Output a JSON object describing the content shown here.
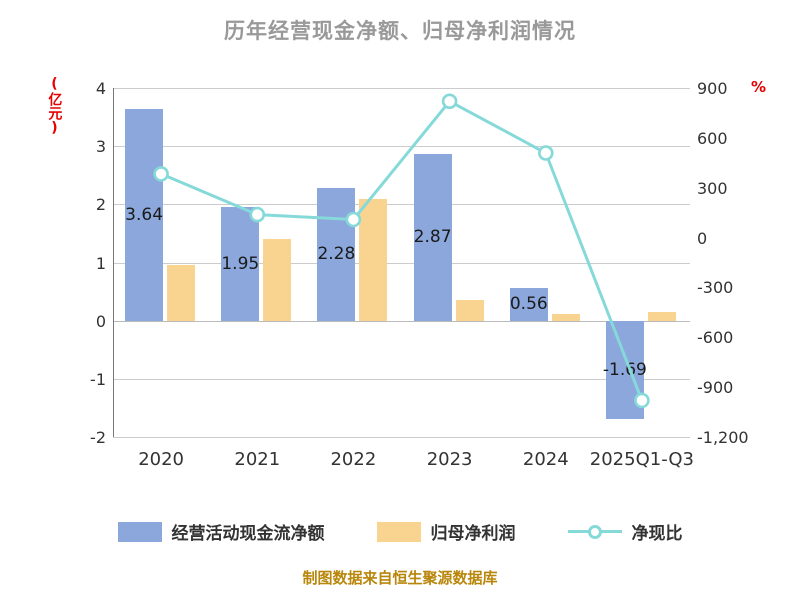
{
  "title": "历年经营现金净额、归母净利润情况",
  "footer": "制图数据来自恒生聚源数据库",
  "colors": {
    "title_gray": "#999999",
    "axis_unit_red": "#e60000",
    "tick_label": "#333333",
    "bar_blue": "#8ba7db",
    "bar_yellow": "#f9d491",
    "line_cyan": "#86d9d9",
    "grid": "#cccccc",
    "footer_gold": "#b8860b"
  },
  "legend": [
    {
      "label": "经营活动现金流净额",
      "type": "bar",
      "color": "#8ba7db"
    },
    {
      "label": "归母净利润",
      "type": "bar",
      "color": "#f9d491"
    },
    {
      "label": "净现比",
      "type": "line",
      "color": "#86d9d9"
    }
  ],
  "chart_data": {
    "type": "bar",
    "title": "历年经营现金净额、归母净利润情况",
    "categories": [
      "2020",
      "2021",
      "2022",
      "2023",
      "2024",
      "2025Q1-Q3"
    ],
    "series": [
      {
        "name": "经营活动现金流净额",
        "type": "bar",
        "axis": "left",
        "color": "#8ba7db",
        "values": [
          3.64,
          1.95,
          2.28,
          2.87,
          0.56,
          -1.69
        ],
        "labels": [
          "3.64",
          "1.95",
          "2.28",
          "2.87",
          "0.56",
          "-1.69"
        ]
      },
      {
        "name": "归母净利润",
        "type": "bar",
        "axis": "left",
        "color": "#f9d491",
        "values": [
          0.95,
          1.41,
          2.1,
          0.36,
          0.12,
          0.15
        ]
      },
      {
        "name": "净现比",
        "type": "line",
        "axis": "right",
        "color": "#86d9d9",
        "values": [
          383,
          138,
          109,
          820,
          509,
          -980
        ]
      }
    ],
    "left_axis": {
      "unit": "(亿元)",
      "min": -2,
      "max": 4,
      "tick_values": [
        4,
        3,
        2,
        1,
        0,
        -1,
        -2
      ],
      "tick_labels": [
        "4",
        "3",
        "2",
        "1",
        "0",
        "-1",
        "-2"
      ]
    },
    "right_axis": {
      "unit": "%",
      "min": -1200,
      "max": 900,
      "tick_values": [
        900,
        600,
        300,
        0,
        -300,
        -600,
        -900,
        -1200
      ],
      "tick_labels": [
        "900",
        "600",
        "300",
        "0",
        "-300",
        "-600",
        "-900",
        "-1,200"
      ]
    },
    "grid": true,
    "legend_position": "bottom"
  }
}
